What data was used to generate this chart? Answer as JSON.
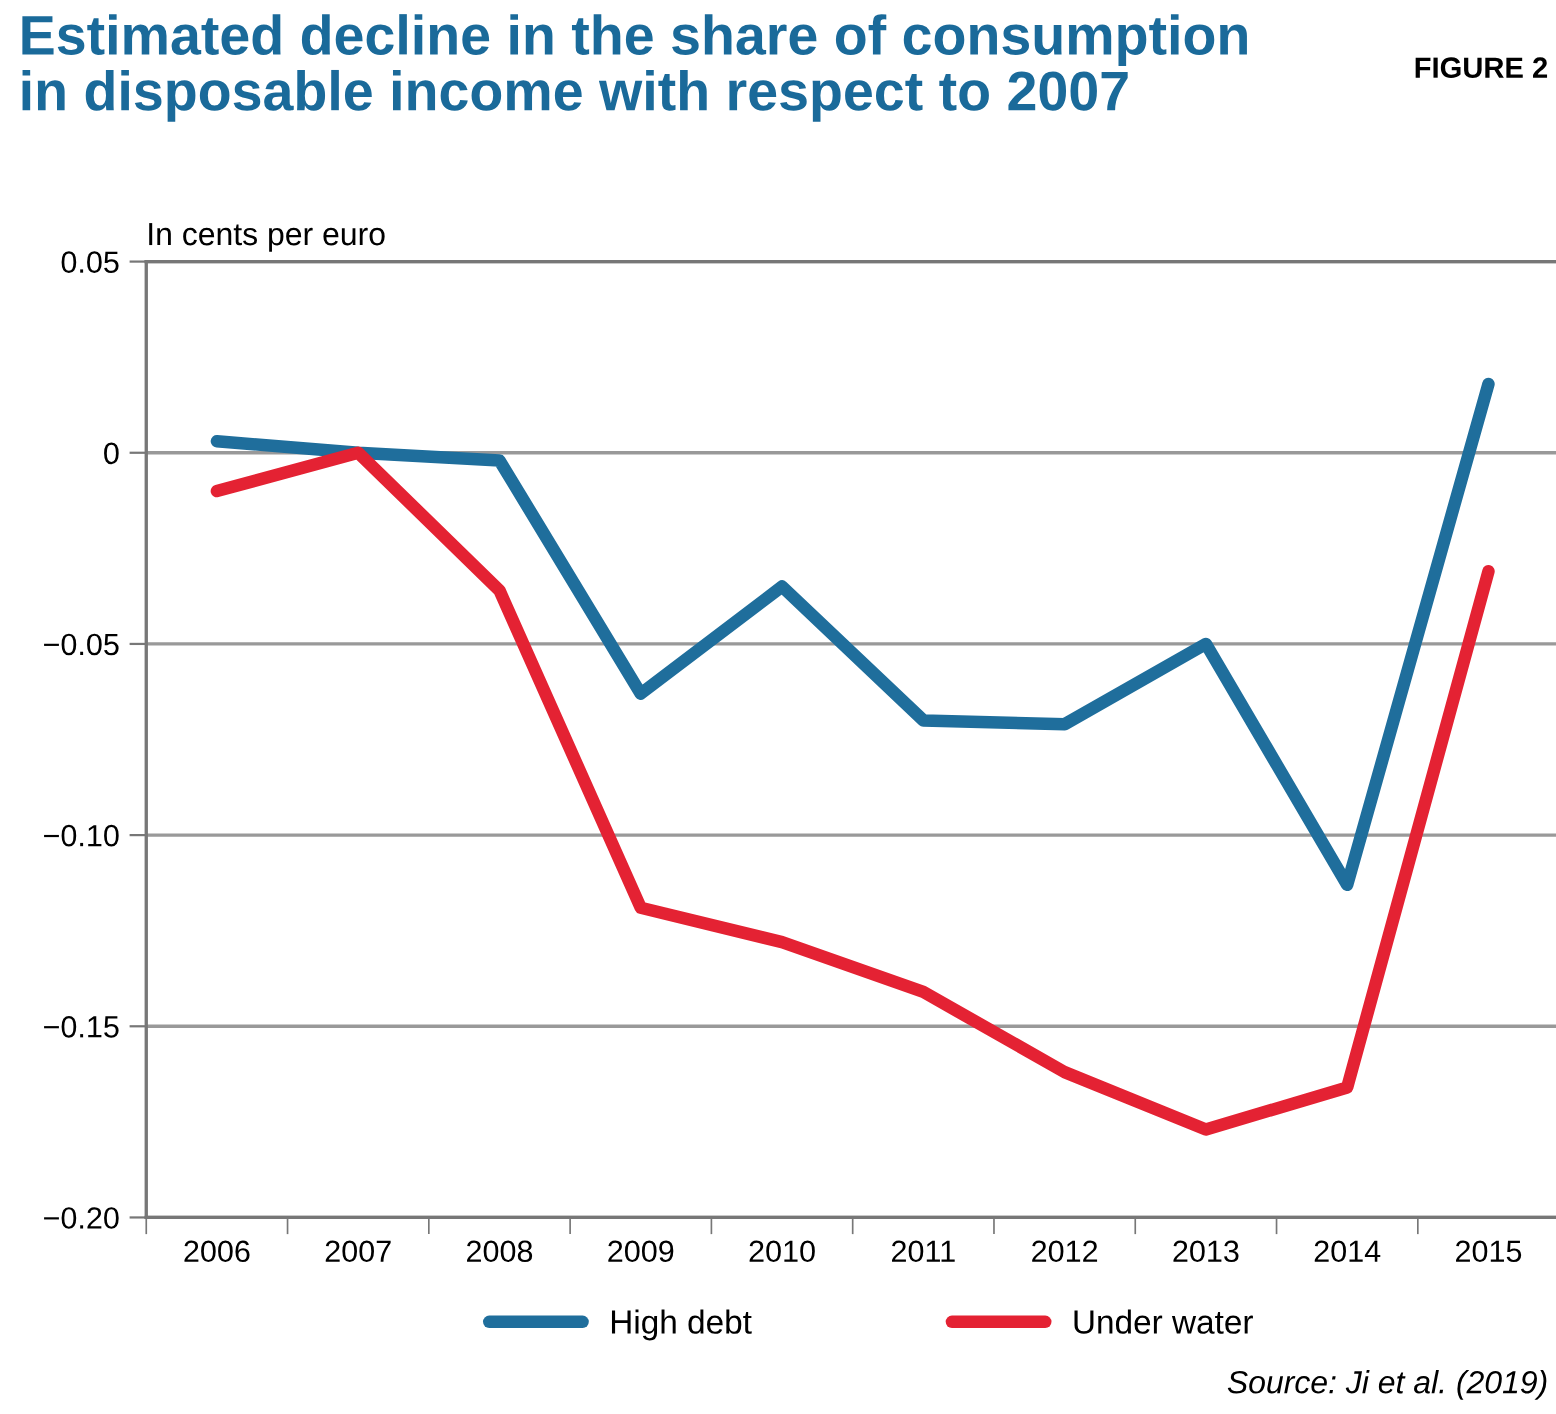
{
  "chart_data": {
    "type": "line",
    "title": "Estimated decline in the share of consumption\nin disposable income with respect to 2007",
    "ylabel": "In cents per euro",
    "annotations": [
      "FIGURE 2",
      "Source: Ji et al. (2019)"
    ],
    "categories": [
      "2006",
      "2007",
      "2008",
      "2009",
      "2010",
      "2011",
      "2012",
      "2013",
      "2014",
      "2015"
    ],
    "series": [
      {
        "name": "High debt",
        "color": "#1f6e9c",
        "values": [
          0.003,
          0,
          -0.002,
          -0.063,
          -0.035,
          -0.07,
          -0.071,
          -0.05,
          -0.113,
          0.018
        ]
      },
      {
        "name": "Under water",
        "color": "#e42233",
        "values": [
          -0.01,
          0,
          -0.036,
          -0.119,
          -0.128,
          -0.141,
          -0.162,
          -0.177,
          -0.166,
          -0.031
        ]
      }
    ],
    "ylim": [
      -0.2,
      0.05
    ],
    "yticks": [
      {
        "value": 0.05,
        "label": "0.05"
      },
      0,
      {
        "value": -0.05,
        "label": "−0.05"
      },
      {
        "value": -0.1,
        "label": "−0.10"
      },
      {
        "value": -0.15,
        "label": "−0.15"
      },
      {
        "value": -0.2,
        "label": "−0.20"
      }
    ],
    "grid": "y",
    "legend": "bottom",
    "marker": "none",
    "line_style": "solid"
  }
}
